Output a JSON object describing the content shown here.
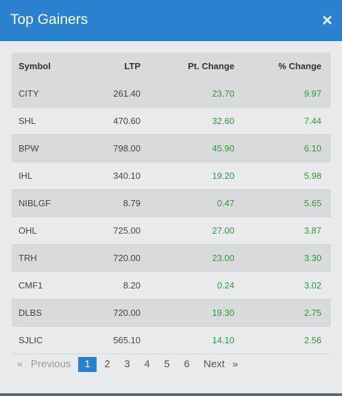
{
  "header": {
    "title": "Top Gainers",
    "close": "×"
  },
  "table": {
    "columns": [
      "Symbol",
      "LTP",
      "Pt. Change",
      "% Change"
    ],
    "rows": [
      [
        "CITY",
        "261.40",
        "23.70",
        "9.97"
      ],
      [
        "SHL",
        "470.60",
        "32.60",
        "7.44"
      ],
      [
        "BPW",
        "798.00",
        "45.90",
        "6.10"
      ],
      [
        "IHL",
        "340.10",
        "19.20",
        "5.98"
      ],
      [
        "NIBLGF",
        "8.79",
        "0.47",
        "5.65"
      ],
      [
        "OHL",
        "725.00",
        "27.00",
        "3.87"
      ],
      [
        "TRH",
        "720.00",
        "23.00",
        "3.30"
      ],
      [
        "CMF1",
        "8.20",
        "0.24",
        "3.02"
      ],
      [
        "DLBS",
        "720.00",
        "19.30",
        "2.75"
      ],
      [
        "SJLIC",
        "565.10",
        "14.10",
        "2.56"
      ]
    ]
  },
  "pagination": {
    "prev_symbol": "«",
    "prev": "Previous",
    "pages": [
      1,
      2,
      3,
      4,
      5,
      6
    ],
    "active": 1,
    "next": "Next",
    "next_symbol": "»"
  }
}
